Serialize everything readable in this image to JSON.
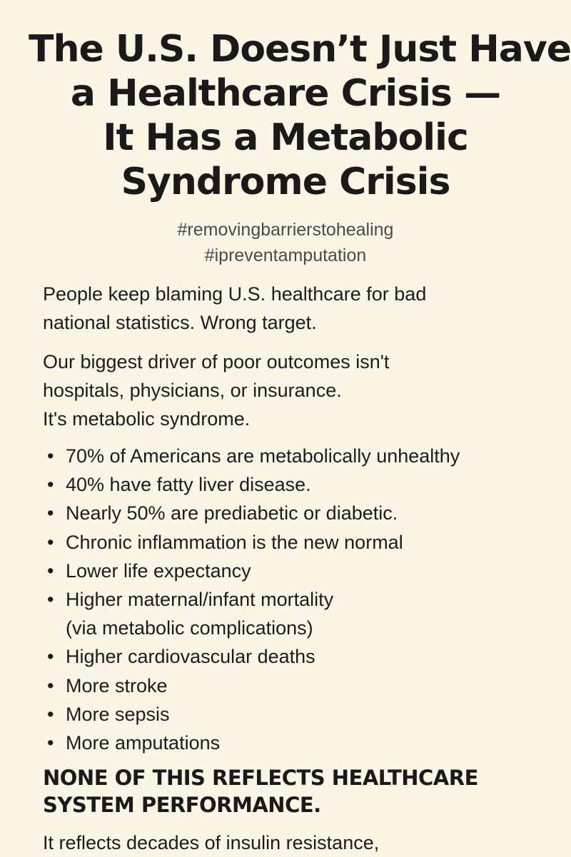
{
  "title": {
    "line1": "The U.S. Doesn’t Just Have",
    "line2": "a Healthcare Crisis —",
    "line3": "It Has a Metabolic",
    "line4": "Syndrome Crisis"
  },
  "hashtags": [
    "#removingbarrierstohealing",
    "#ipreventamputation"
  ],
  "paragraph1": {
    "line1": "People keep blaming U.S. healthcare for bad",
    "line2": "national statistics. Wrong target."
  },
  "paragraph2": {
    "line1": "Our biggest driver of poor outcomes isn't",
    "line2": "hospitals, physicians, or insurance.",
    "line3": "It's metabolic syndrome."
  },
  "bullet_glyph": "•",
  "bullets": [
    {
      "text": "70% of Americans are metabolically unhealthy",
      "sub": ""
    },
    {
      "text": "40% have fatty liver disease.",
      "sub": ""
    },
    {
      "text": "Nearly 50% are prediabetic or diabetic.",
      "sub": ""
    },
    {
      "text": "Chronic inflammation is the new normal",
      "sub": ""
    },
    {
      "text": "Lower life expectancy",
      "sub": ""
    },
    {
      "text": "Higher maternal/infant mortality",
      "sub": "(via metabolic complications)"
    },
    {
      "text": "Higher cardiovascular deaths",
      "sub": ""
    },
    {
      "text": "More stroke",
      "sub": ""
    },
    {
      "text": "More sepsis",
      "sub": ""
    },
    {
      "text": "More amputations",
      "sub": ""
    }
  ],
  "callout": {
    "line1": "NONE OF THIS REFLECTS HEALTHCARE",
    "line2": "SYSTEM PERFORMANCE."
  },
  "paragraph3": {
    "line1": "It reflects decades of insulin resistance,"
  }
}
